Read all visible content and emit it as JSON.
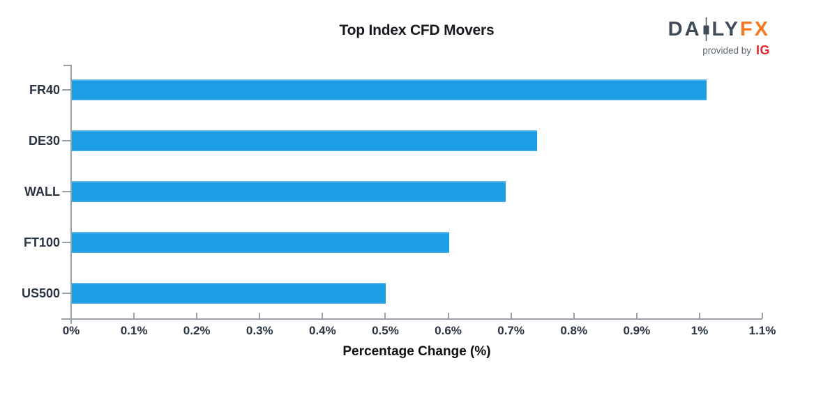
{
  "chart_data": {
    "type": "bar",
    "orientation": "horizontal",
    "title": "Top Index CFD Movers",
    "xlabel": "Percentage Change (%)",
    "ylabel": "",
    "categories": [
      "FR40",
      "DE30",
      "WALL",
      "FT100",
      "US500"
    ],
    "values": [
      1.01,
      0.74,
      0.69,
      0.6,
      0.5
    ],
    "xlim": [
      0,
      1.1
    ],
    "x_tick_values": [
      0,
      0.1,
      0.2,
      0.3,
      0.4,
      0.5,
      0.6,
      0.7,
      0.8,
      0.9,
      1.0,
      1.1
    ],
    "x_tick_labels": [
      "0%",
      "0.1%",
      "0.2%",
      "0.3%",
      "0.4%",
      "0.5%",
      "0.6%",
      "0.7%",
      "0.8%",
      "0.9%",
      "1%",
      "1.1%"
    ],
    "grid": false,
    "legend": false,
    "bar_color": "#1c9de4"
  },
  "logo": {
    "part1": "DA",
    "part2": "LY",
    "part3": "FX",
    "provided_by": "provided by",
    "ig": "IG"
  },
  "colors": {
    "bar": "#1c9de4",
    "axis": "#9aa0a7",
    "tick_label": "#2a3441",
    "title": "#15181d",
    "logo_slate": "#414c58",
    "logo_orange": "#f5791e",
    "provided_by_gray": "#5c6670",
    "ig_red": "#e8262d"
  }
}
